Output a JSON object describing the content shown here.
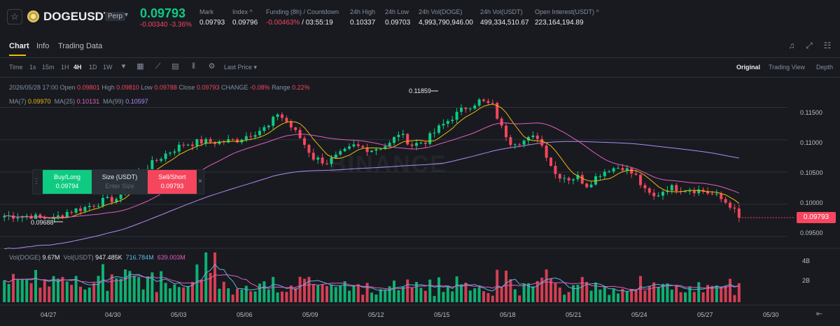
{
  "header": {
    "symbol": "DOGEUSDT",
    "badge": "Perp",
    "last_price": "0.09793",
    "change": "-0.00340 -3.36%",
    "stats": [
      {
        "label": "Mark",
        "value": "0.09793"
      },
      {
        "label": "Index ^",
        "value": "0.09796"
      },
      {
        "label": "Funding (8h) / Countdown",
        "value_red": "-0.00463%",
        "value_rest": " / 03:55:19"
      },
      {
        "label": "24h High",
        "value": "0.10337"
      },
      {
        "label": "24h Low",
        "value": "0.09703"
      },
      {
        "label": "24h Vol(DOGE)",
        "value": "4,993,790,946.00"
      },
      {
        "label": "24h Vol(USDT)",
        "value": "499,334,510.67"
      },
      {
        "label": "Open Interest(USDT) ^",
        "value": "223,164,194.89"
      }
    ]
  },
  "tabs": [
    "Chart",
    "Info",
    "Trading Data"
  ],
  "toolbar": {
    "intervals": [
      "Time",
      "1s",
      "15m",
      "1H",
      "4H",
      "1D",
      "1W"
    ],
    "active_interval": "4H",
    "price_type": "Last Price",
    "views": [
      "Original",
      "Trading View",
      "Depth"
    ],
    "active_view": "Original"
  },
  "ohlc": {
    "date": "2026/05/28 17:00",
    "open_label": "Open",
    "open": "0.09801",
    "high_label": "High",
    "high": "0.09810",
    "low_label": "Low",
    "low": "0.09788",
    "close_label": "Close",
    "close": "0.09793",
    "change_label": "CHANGE",
    "change": "-0.08%",
    "range_label": "Range",
    "range": "0.22%"
  },
  "ma": {
    "ma7_label": "MA(7)",
    "ma7": "0.09970",
    "ma25_label": "MA(25)",
    "ma25": "0.10131",
    "ma99_label": "MA(99)",
    "ma99": "0.10597"
  },
  "volume": {
    "doge_label": "Vol(DOGE)",
    "doge": "9.67M",
    "usdt_label": "Vol(USDT)",
    "usdt": "947.485K",
    "ma1": "716.784M",
    "ma2": "639.003M"
  },
  "order": {
    "buy_label": "Buy/Long",
    "buy_price": "0.09794",
    "size_label": "Size (USDT)",
    "size_placeholder": "Enter Size",
    "sell_label": "Sell/Short",
    "sell_price": "0.09793"
  },
  "annotations": {
    "high": "0.11859",
    "low": "0.09688"
  },
  "watermark": "BINANCE",
  "colors": {
    "up": "#0ecb81",
    "down": "#f6465d",
    "ma7": "#f0b90b",
    "ma25": "#e05ebd",
    "ma99": "#b28af2",
    "accent": "#f0b90b"
  },
  "chart_data": {
    "type": "candlestick",
    "yticks": [
      "0.11500",
      "0.11000",
      "0.10500",
      "0.10000",
      "0.09500"
    ],
    "ylim": [
      0.0935,
      0.1195
    ],
    "xticks": [
      "04/27",
      "04/30",
      "05/03",
      "05/06",
      "05/09",
      "05/12",
      "05/15",
      "05/18",
      "05/21",
      "05/24",
      "05/27",
      "05/30"
    ],
    "volume_ticks": [
      "4B",
      "2B"
    ],
    "volume_ylim": [
      0,
      4.7
    ],
    "current_price": "0.09793",
    "anchors": [
      [
        0,
        0.0982
      ],
      [
        6,
        0.0982
      ],
      [
        10,
        0.0974
      ],
      [
        14,
        0.0988
      ],
      [
        18,
        0.0995
      ],
      [
        22,
        0.1005
      ],
      [
        26,
        0.101
      ],
      [
        28,
        0.104
      ],
      [
        32,
        0.1058
      ],
      [
        36,
        0.1078
      ],
      [
        40,
        0.1093
      ],
      [
        44,
        0.1097
      ],
      [
        48,
        0.1096
      ],
      [
        52,
        0.11
      ],
      [
        56,
        0.1112
      ],
      [
        59,
        0.112
      ],
      [
        61,
        0.1141
      ],
      [
        63,
        0.1128
      ],
      [
        66,
        0.1103
      ],
      [
        69,
        0.1072
      ],
      [
        72,
        0.1065
      ],
      [
        75,
        0.1077
      ],
      [
        78,
        0.109
      ],
      [
        82,
        0.1085
      ],
      [
        86,
        0.1093
      ],
      [
        88,
        0.111
      ],
      [
        91,
        0.1092
      ],
      [
        94,
        0.1098
      ],
      [
        97,
        0.1118
      ],
      [
        100,
        0.1135
      ],
      [
        103,
        0.115
      ],
      [
        106,
        0.116
      ],
      [
        109,
        0.1153
      ],
      [
        111,
        0.1118
      ],
      [
        113,
        0.1097
      ],
      [
        116,
        0.1098
      ],
      [
        119,
        0.1105
      ],
      [
        121,
        0.1077
      ],
      [
        123,
        0.1047
      ],
      [
        126,
        0.104
      ],
      [
        128,
        0.1042
      ],
      [
        130,
        0.103
      ],
      [
        133,
        0.1048
      ],
      [
        135,
        0.1055
      ],
      [
        138,
        0.1058
      ],
      [
        141,
        0.1043
      ],
      [
        143,
        0.102
      ],
      [
        145,
        0.1011
      ],
      [
        148,
        0.1026
      ],
      [
        150,
        0.1025
      ],
      [
        153,
        0.1023
      ],
      [
        156,
        0.1021
      ],
      [
        159,
        0.1012
      ],
      [
        162,
        0.0999
      ],
      [
        164,
        0.0979
      ]
    ]
  }
}
